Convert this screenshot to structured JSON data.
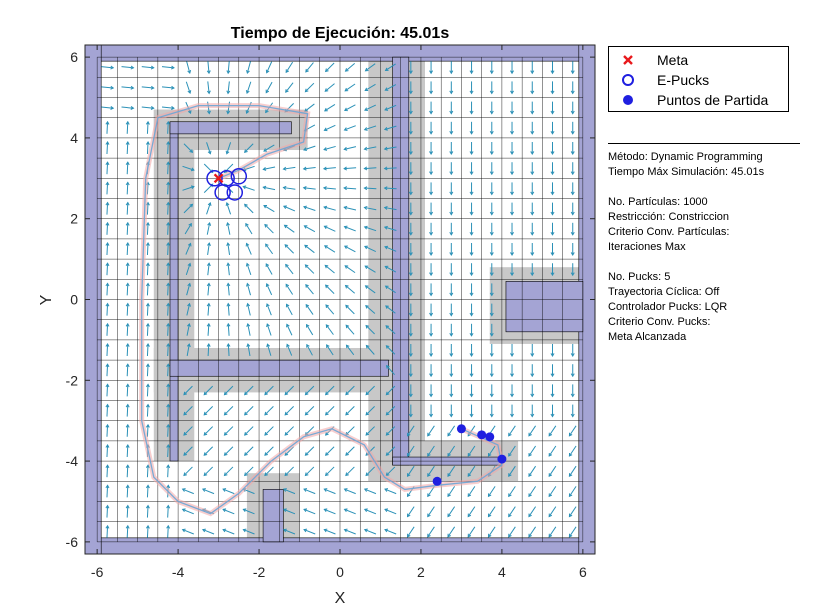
{
  "chart_data": {
    "type": "quiver",
    "title": "Tiempo de Ejecución: 45.01s",
    "xlabel": "X",
    "ylabel": "Y",
    "xlim": [
      -6.3,
      6.3
    ],
    "ylim": [
      -6.3,
      6.3
    ],
    "xticks": [
      -6,
      -4,
      -2,
      0,
      2,
      4,
      6
    ],
    "yticks": [
      -6,
      -4,
      -2,
      0,
      2,
      4,
      6
    ],
    "tick_labels_x": [
      "-6",
      "-4",
      "-2",
      "0",
      "2",
      "4",
      "6"
    ],
    "tick_labels_y": [
      "-6",
      "-4",
      "-2",
      "0",
      "2",
      "4",
      "6"
    ],
    "grid": true,
    "goal": {
      "x": -3.0,
      "y": 3.0
    },
    "start_points": [
      {
        "x": 3.0,
        "y": -3.2
      },
      {
        "x": 3.5,
        "y": -3.35
      },
      {
        "x": 3.7,
        "y": -3.4
      },
      {
        "x": 4.0,
        "y": -3.95
      },
      {
        "x": 2.4,
        "y": -4.5
      }
    ],
    "epucks_final": [
      {
        "x": -3.1,
        "y": 3.0
      },
      {
        "x": -2.8,
        "y": 3.0
      },
      {
        "x": -2.5,
        "y": 3.05
      },
      {
        "x": -2.9,
        "y": 2.65
      },
      {
        "x": -2.6,
        "y": 2.65
      }
    ],
    "walls": [
      {
        "x1": -6.3,
        "y1": 5.9,
        "x2": 6.3,
        "y2": 6.3
      },
      {
        "x1": -6.3,
        "y1": -6.3,
        "x2": 6.3,
        "y2": -5.9
      },
      {
        "x1": -6.3,
        "y1": -6.3,
        "x2": -5.9,
        "y2": 6.3
      },
      {
        "x1": 5.9,
        "y1": -6.3,
        "x2": 6.3,
        "y2": 6.3
      },
      {
        "x1": -4.2,
        "y1": -4.0,
        "x2": -4.0,
        "y2": 4.4
      },
      {
        "x1": -4.2,
        "y1": 4.1,
        "x2": -1.2,
        "y2": 4.4
      },
      {
        "x1": -4.2,
        "y1": -1.9,
        "x2": 1.2,
        "y2": -1.5
      },
      {
        "x1": 1.3,
        "y1": -4.1,
        "x2": 1.7,
        "y2": 6.0
      },
      {
        "x1": 1.3,
        "y1": -4.1,
        "x2": 4.0,
        "y2": -3.9
      },
      {
        "x1": -1.9,
        "y1": -6.0,
        "x2": -1.4,
        "y2": -4.7
      },
      {
        "x1": 4.1,
        "y1": -0.8,
        "x2": 6.0,
        "y2": 0.45
      }
    ],
    "obstacles_inflated": [
      {
        "x1": -4.6,
        "y1": -4.0,
        "x2": -3.6,
        "y2": 4.7
      },
      {
        "x1": -4.6,
        "y1": 3.7,
        "x2": -0.8,
        "y2": 4.7
      },
      {
        "x1": -4.6,
        "y1": -2.3,
        "x2": 1.6,
        "y2": -1.2
      },
      {
        "x1": 0.7,
        "y1": -4.5,
        "x2": 2.1,
        "y2": 6.0
      },
      {
        "x1": 0.7,
        "y1": -4.5,
        "x2": 4.4,
        "y2": -3.5
      },
      {
        "x1": -2.3,
        "y1": -6.0,
        "x2": -1.0,
        "y2": -4.3
      },
      {
        "x1": 3.7,
        "y1": -1.1,
        "x2": 6.0,
        "y2": 0.8
      }
    ],
    "legend": {
      "position": "outside-top-right",
      "entries": [
        {
          "label": "Meta",
          "marker": "x",
          "color": "#e8191c"
        },
        {
          "label": "E-Pucks",
          "marker": "open-circle",
          "color": "#1f1fe0"
        },
        {
          "label": "Puntos de Partida",
          "marker": "filled-circle",
          "color": "#1f1fe0"
        }
      ]
    },
    "colors": {
      "wall": "#a4a4d4",
      "inflated": "#c8c8c8",
      "vector": "#2b91b7",
      "trail_light": "#f2a6a6",
      "trail_blue": "#6aa6d6"
    }
  },
  "info_panel": {
    "lines": [
      "Método: Dynamic Programming",
      "Tiempo Máx Simulación: 45.01s",
      "",
      "No. Partículas: 1000",
      "Restricción: Constriccion",
      "Criterio Conv. Partículas:",
      "Iteraciones Max",
      "",
      "No. Pucks: 5",
      "Trayectoria Cíclica: Off",
      "Controlador Pucks: LQR",
      "Criterio Conv. Pucks:",
      "Meta Alcanzada"
    ]
  }
}
